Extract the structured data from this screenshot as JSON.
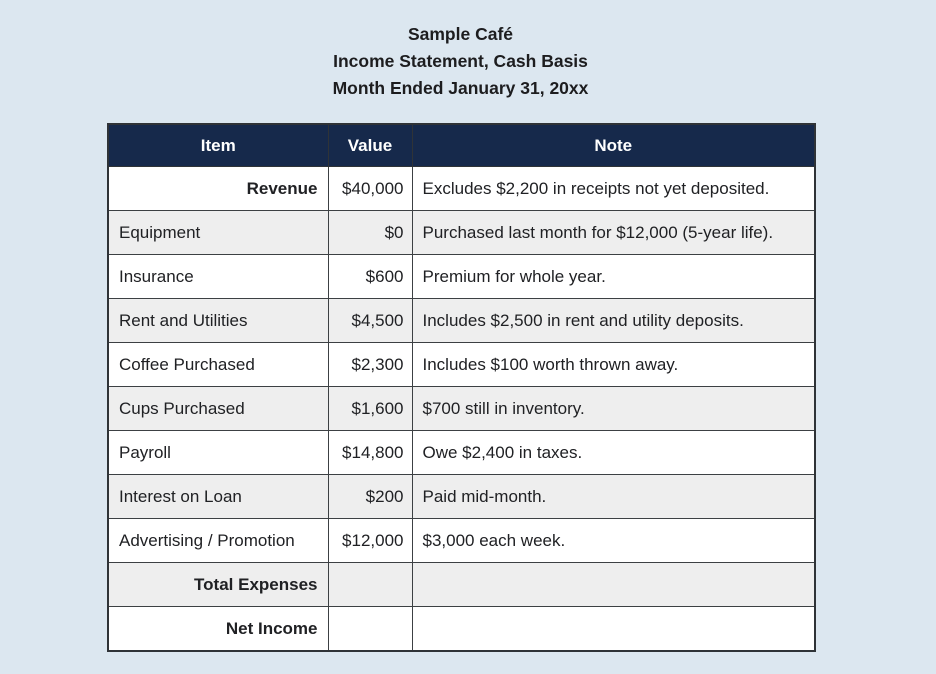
{
  "title": {
    "line1": "Sample Café",
    "line2": "Income Statement, Cash Basis",
    "line3": "Month Ended January 31, 20xx"
  },
  "colors": {
    "page_background": "#dce7f0",
    "header_background": "#16294b",
    "header_text": "#ffffff",
    "row_alternate": "#eeeeee",
    "border": "#2f3337",
    "text": "#202124"
  },
  "table": {
    "columns": [
      "Item",
      "Value",
      "Note"
    ],
    "rows": [
      {
        "item": "Revenue",
        "value": "$40,000",
        "note": "Excludes $2,200 in receipts not yet deposited."
      },
      {
        "item": "Equipment",
        "value": "$0",
        "note": "Purchased last month for $12,000 (5-year life)."
      },
      {
        "item": "Insurance",
        "value": "$600",
        "note": "Premium for whole year."
      },
      {
        "item": "Rent and Utilities",
        "value": "$4,500",
        "note": "Includes $2,500 in rent and utility deposits."
      },
      {
        "item": "Coffee Purchased",
        "value": "$2,300",
        "note": "Includes $100 worth thrown away."
      },
      {
        "item": "Cups Purchased",
        "value": "$1,600",
        "note": "$700 still in inventory."
      },
      {
        "item": "Payroll",
        "value": "$14,800",
        "note": "Owe $2,400 in taxes."
      },
      {
        "item": "Interest on Loan",
        "value": "$200",
        "note": "Paid mid-month."
      },
      {
        "item": "Advertising / Promotion",
        "value": "$12,000",
        "note": "$3,000 each week."
      },
      {
        "item": "Total Expenses",
        "value": "",
        "note": ""
      },
      {
        "item": "Net Income",
        "value": "",
        "note": ""
      }
    ]
  }
}
